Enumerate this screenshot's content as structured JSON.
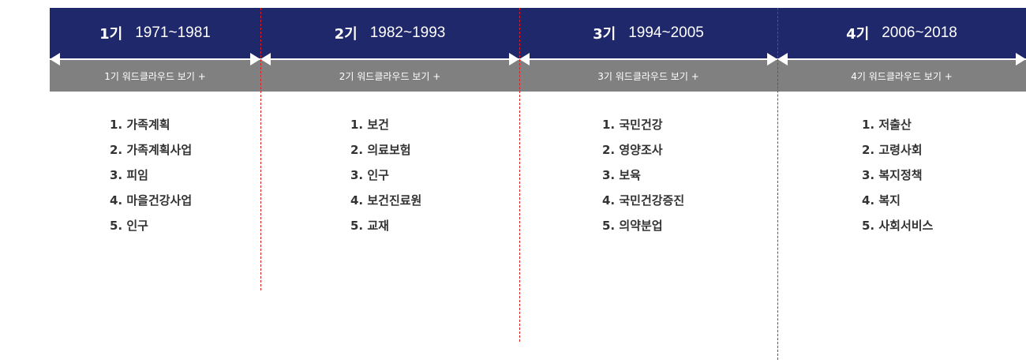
{
  "periods": [
    {
      "label": "1기",
      "years": "1971~1981",
      "cloud_link": "1기 워드클라우드 보기 +",
      "keywords": [
        "1. 가족계획",
        "2. 가족계획사업",
        "3. 피임",
        "4. 마을건강사업",
        "5. 인구"
      ]
    },
    {
      "label": "2기",
      "years": "1982~1993",
      "cloud_link": "2기 워드클라우드 보기 +",
      "keywords": [
        "1. 보건",
        "2. 의료보험",
        "3. 인구",
        "4. 보건진료원",
        "5. 교재"
      ]
    },
    {
      "label": "3기",
      "years": "1994~2005",
      "cloud_link": "3기 워드클라우드 보기 +",
      "keywords": [
        "1. 국민건강",
        "2. 영양조사",
        "3. 보육",
        "4. 국민건강증진",
        "5. 의약분업"
      ]
    },
    {
      "label": "4기",
      "years": "2006~2018",
      "cloud_link": "4기 워드클라우드 보기 +",
      "keywords": [
        "1. 저출산",
        "2. 고령사회",
        "3. 복지정책",
        "4. 복지",
        "5. 사회서비스"
      ]
    }
  ],
  "colors": {
    "header": "#1f286b",
    "subbar": "#808080",
    "divider": "#e02020"
  }
}
